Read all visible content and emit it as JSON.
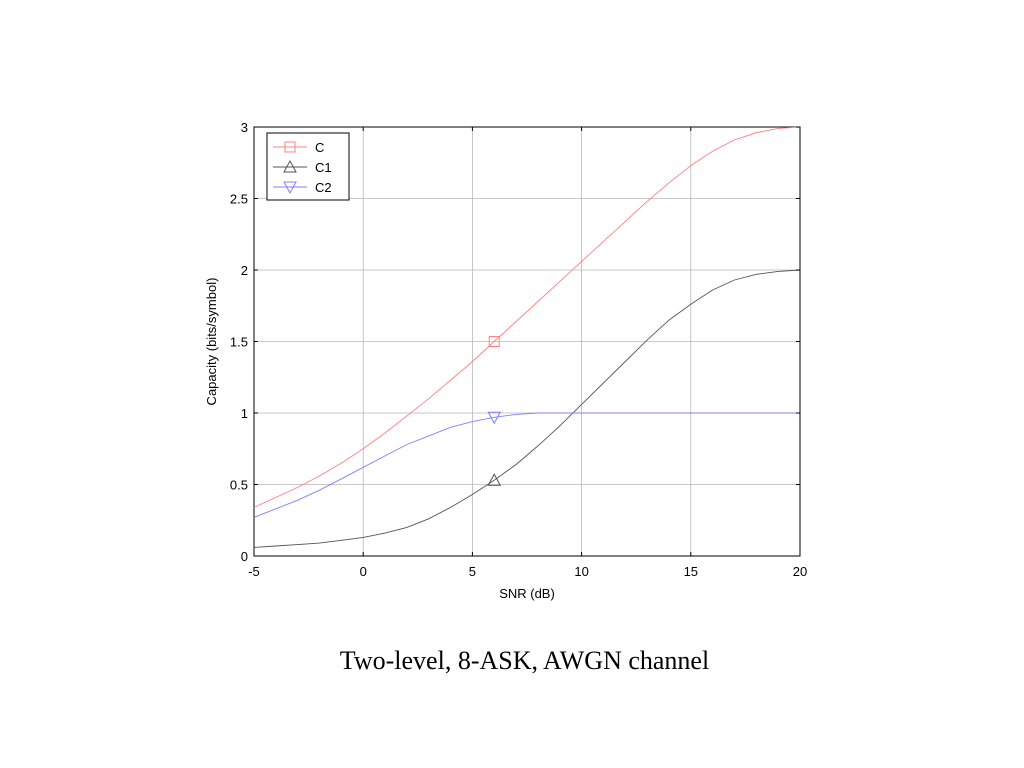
{
  "caption": "Two-level, 8-ASK, AWGN channel",
  "chart_data": {
    "type": "line",
    "title": "",
    "xlabel": "SNR (dB)",
    "ylabel": "Capacity (bits/symbol)",
    "xlim": [
      -5,
      20
    ],
    "ylim": [
      0,
      3
    ],
    "xticks": [
      -5,
      0,
      5,
      10,
      15,
      20
    ],
    "yticks": [
      0,
      0.5,
      1,
      1.5,
      2,
      2.5,
      3
    ],
    "xtick_labels": [
      "-5",
      "0",
      "5",
      "10",
      "15",
      "20"
    ],
    "ytick_labels": [
      "0",
      "0.5",
      "1",
      "1.5",
      "2",
      "2.5",
      "3"
    ],
    "grid": true,
    "legend_position": "top-left",
    "x": [
      -5,
      -4,
      -3,
      -2,
      -1,
      0,
      1,
      2,
      3,
      4,
      5,
      6,
      7,
      8,
      9,
      10,
      11,
      12,
      13,
      14,
      15,
      16,
      17,
      18,
      19,
      20
    ],
    "series": [
      {
        "name": "C",
        "color": "#ff8080",
        "marker": "square",
        "marker_x": 6,
        "values": [
          0.34,
          0.41,
          0.48,
          0.56,
          0.65,
          0.75,
          0.86,
          0.98,
          1.1,
          1.23,
          1.36,
          1.5,
          1.64,
          1.78,
          1.92,
          2.06,
          2.2,
          2.34,
          2.48,
          2.61,
          2.73,
          2.83,
          2.91,
          2.96,
          2.99,
          3.0
        ]
      },
      {
        "name": "C1",
        "color": "#555555",
        "marker": "triangle-up",
        "marker_x": 6,
        "values": [
          0.06,
          0.07,
          0.08,
          0.09,
          0.11,
          0.13,
          0.16,
          0.2,
          0.26,
          0.34,
          0.43,
          0.53,
          0.64,
          0.77,
          0.91,
          1.06,
          1.21,
          1.36,
          1.51,
          1.65,
          1.76,
          1.86,
          1.93,
          1.97,
          1.99,
          2.0
        ]
      },
      {
        "name": "C2",
        "color": "#8080ff",
        "marker": "triangle-down",
        "marker_x": 6,
        "values": [
          0.27,
          0.33,
          0.39,
          0.46,
          0.54,
          0.62,
          0.7,
          0.78,
          0.84,
          0.9,
          0.94,
          0.97,
          0.99,
          1.0,
          1.0,
          1.0,
          1.0,
          1.0,
          1.0,
          1.0,
          1.0,
          1.0,
          1.0,
          1.0,
          1.0,
          1.0
        ]
      }
    ]
  }
}
